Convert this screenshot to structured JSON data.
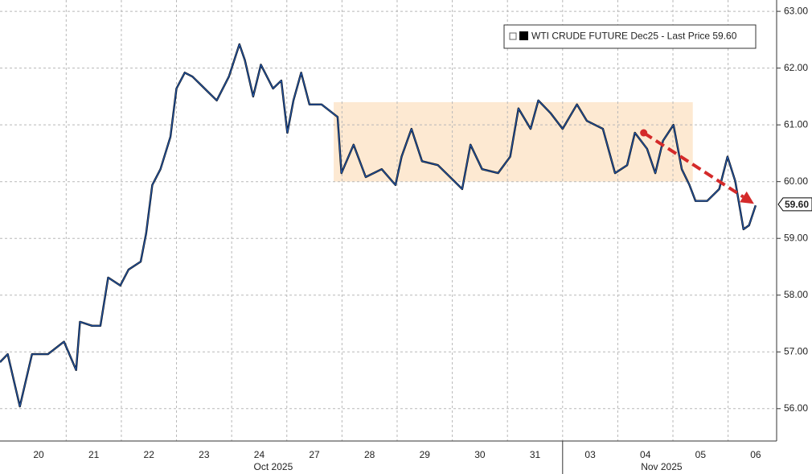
{
  "chart_data": {
    "type": "line",
    "x": [
      0.3,
      0.44,
      0.66,
      0.88,
      1.17,
      1.46,
      1.68,
      1.75,
      1.97,
      2.12,
      2.26,
      2.48,
      2.63,
      2.85,
      2.95,
      3.06,
      3.21,
      3.39,
      3.5,
      3.65,
      3.79,
      4.01,
      4.23,
      4.45,
      4.64,
      4.74,
      4.89,
      5.03,
      5.25,
      5.4,
      5.51,
      5.62,
      5.76,
      5.91,
      6.13,
      6.42,
      6.49,
      6.71,
      6.93,
      7.22,
      7.47,
      7.58,
      7.76,
      7.95,
      8.24,
      8.46,
      8.68,
      8.83,
      9.04,
      9.33,
      9.55,
      9.7,
      9.92,
      10.06,
      10.28,
      10.5,
      10.76,
      10.94,
      11.23,
      11.45,
      11.67,
      11.81,
      12.03,
      12.18,
      12.32,
      12.51,
      12.66,
      12.8,
      12.91,
      13.12,
      13.34,
      13.49,
      13.63,
      13.78,
      13.88,
      14.0
    ],
    "series": [
      {
        "name": "WTI CRUDE FUTURE Dec25 - Last Price 59.60",
        "color": "#2456a6",
        "values": [
          56.82,
          56.96,
          56.04,
          56.96,
          56.96,
          57.18,
          56.68,
          57.53,
          57.46,
          57.46,
          58.31,
          58.17,
          58.45,
          58.59,
          59.09,
          59.94,
          60.22,
          60.79,
          61.64,
          61.92,
          61.85,
          61.64,
          61.43,
          61.85,
          62.42,
          62.14,
          61.5,
          62.06,
          61.64,
          61.78,
          60.86,
          61.43,
          61.92,
          61.36,
          61.36,
          61.14,
          60.15,
          60.65,
          60.08,
          60.22,
          59.94,
          60.44,
          60.93,
          60.36,
          60.29,
          60.08,
          59.87,
          60.65,
          60.22,
          60.15,
          60.44,
          61.29,
          60.93,
          61.43,
          61.21,
          60.93,
          61.36,
          61.07,
          60.93,
          60.15,
          60.29,
          60.86,
          60.58,
          60.15,
          60.72,
          61.0,
          60.22,
          59.94,
          59.66,
          59.66,
          59.87,
          60.44,
          60.01,
          59.16,
          59.23,
          59.58
        ]
      }
    ],
    "xlim": [
      0.3,
      14.38
    ],
    "xticks": [
      {
        "value": 1,
        "label": "20"
      },
      {
        "value": 2,
        "label": "21"
      },
      {
        "value": 3,
        "label": "22"
      },
      {
        "value": 4,
        "label": "23"
      },
      {
        "value": 5,
        "label": "24"
      },
      {
        "value": 6,
        "label": "27"
      },
      {
        "value": 7,
        "label": "28"
      },
      {
        "value": 8,
        "label": "29"
      },
      {
        "value": 9,
        "label": "30"
      },
      {
        "value": 10,
        "label": "31"
      },
      {
        "value": 11,
        "label": "03"
      },
      {
        "value": 12,
        "label": "04"
      },
      {
        "value": 13,
        "label": "05"
      },
      {
        "value": 14,
        "label": "06"
      }
    ],
    "month_labels": [
      "Oct 2025",
      "Nov 2025"
    ],
    "ylim": [
      55.43,
      63.2
    ],
    "yticks": [
      {
        "value": 56,
        "label": "56.00"
      },
      {
        "value": 57,
        "label": "57.00"
      },
      {
        "value": 58,
        "label": "58.00"
      },
      {
        "value": 59,
        "label": "59.00"
      },
      {
        "value": 60,
        "label": "60.00"
      },
      {
        "value": 61,
        "label": "61.00"
      },
      {
        "value": 62,
        "label": "62.00"
      },
      {
        "value": 63,
        "label": "63.00"
      }
    ],
    "last_price": {
      "value": 59.6,
      "label": "59.60"
    },
    "highlight": {
      "x": [
        6.35,
        12.86
      ],
      "y": [
        60.0,
        61.4
      ],
      "color": "#fde9d2"
    },
    "trend_arrow": {
      "x": [
        11.97,
        13.97
      ],
      "y": [
        60.86,
        59.61
      ],
      "color": "#d42a2a"
    },
    "grid": true
  }
}
